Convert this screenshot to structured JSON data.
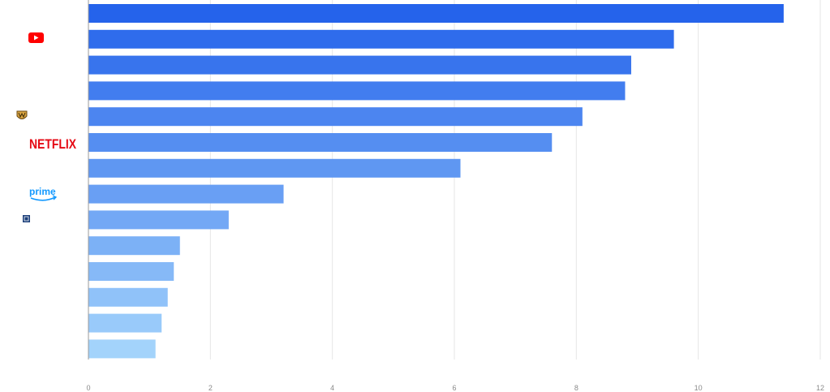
{
  "chart_data": {
    "type": "bar",
    "orientation": "horizontal",
    "values": [
      11.4,
      9.6,
      8.9,
      8.8,
      8.1,
      7.6,
      6.1,
      3.2,
      2.3,
      1.5,
      1.4,
      1.3,
      1.2,
      1.1
    ],
    "category_logos": [
      "",
      "youtube-logo",
      "",
      "",
      "warner-bros-logo",
      "netflix-logo",
      "",
      "prime-video-logo",
      "small-box-logo",
      "",
      "",
      "",
      "",
      ""
    ],
    "xlim": [
      0,
      12
    ],
    "xticks": [
      "0",
      "2",
      "4",
      "6",
      "8",
      "10",
      "12"
    ],
    "grid": true,
    "colors": {
      "bar_start": "#2563eb",
      "bar_end": "#a3d3fb",
      "grid": "#e6e6e6"
    }
  },
  "logos": {
    "netflix": "NETFLIX",
    "prime": "prime"
  }
}
